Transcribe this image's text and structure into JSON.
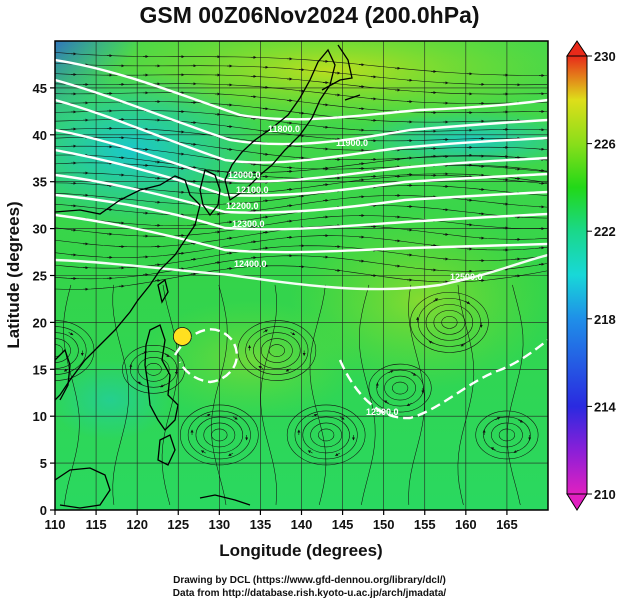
{
  "title": "GSM 00Z06Nov2024 (200.0hPa)",
  "chart_data": {
    "type": "map",
    "title": "GSM 00Z06Nov2024 (200.0hPa)",
    "xlabel": "Longitude (degrees)",
    "ylabel": "Latitude  (degrees)",
    "xlim": [
      110,
      170
    ],
    "ylim": [
      0,
      50
    ],
    "x_ticks": [
      "110",
      "115",
      "120",
      "125",
      "130",
      "135",
      "140",
      "145",
      "150",
      "155",
      "160",
      "165"
    ],
    "y_ticks": [
      "0",
      "5",
      "10",
      "15",
      "20",
      "25",
      "30",
      "35",
      "40",
      "45"
    ],
    "colorbar": {
      "min": 210,
      "max": 230,
      "ticks": [
        "210",
        "214",
        "218",
        "222",
        "226",
        "230"
      ],
      "colors": [
        "#e020c0",
        "#8a1fd8",
        "#2a2ae0",
        "#1f8fe8",
        "#18d8d8",
        "#1ad88a",
        "#22d818",
        "#8ade1a",
        "#dede1a",
        "#f0a81a",
        "#e82a1a"
      ]
    },
    "contours": [
      {
        "label": "12500.0"
      },
      {
        "label": "12400.0"
      },
      {
        "label": "12300.0"
      },
      {
        "label": "12200.0"
      },
      {
        "label": "12100.0"
      },
      {
        "label": "12000.0"
      },
      {
        "label": "11900.0"
      },
      {
        "label": "11800.0"
      }
    ],
    "typhoon_center": {
      "lon": 125.5,
      "lat": 18.5
    }
  },
  "credits": {
    "line1": "Drawing by DCL (https://www.gfd-dennou.org/library/dcl/)",
    "line2": "Data from http://database.rish.kyoto-u.ac.jp/arch/jmadata/"
  }
}
